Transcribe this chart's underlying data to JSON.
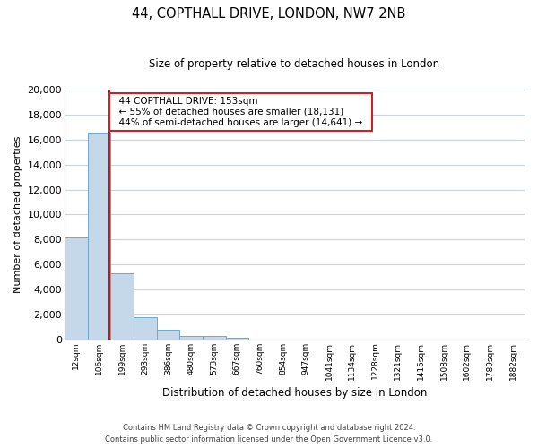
{
  "title": "44, COPTHALL DRIVE, LONDON, NW7 2NB",
  "subtitle": "Size of property relative to detached houses in London",
  "bar_values": [
    8150,
    16550,
    5300,
    1800,
    750,
    300,
    280,
    150,
    0,
    0,
    0,
    0,
    0,
    0,
    0,
    0,
    0,
    0,
    0,
    0
  ],
  "categories": [
    "12sqm",
    "106sqm",
    "199sqm",
    "293sqm",
    "386sqm",
    "480sqm",
    "573sqm",
    "667sqm",
    "760sqm",
    "854sqm",
    "947sqm",
    "1041sqm",
    "1134sqm",
    "1228sqm",
    "1321sqm",
    "1415sqm",
    "1508sqm",
    "1602sqm",
    "1789sqm",
    "1882sqm"
  ],
  "bar_color": "#c5d8ea",
  "bar_edge_color": "#6fa8c8",
  "ylabel": "Number of detached properties",
  "xlabel": "Distribution of detached houses by size in London",
  "ylim": [
    0,
    20000
  ],
  "yticks": [
    0,
    2000,
    4000,
    6000,
    8000,
    10000,
    12000,
    14000,
    16000,
    18000,
    20000
  ],
  "property_line_x": 1.47,
  "property_line_color": "#aa2222",
  "annotation_title": "44 COPTHALL DRIVE: 153sqm",
  "annotation_line1": "← 55% of detached houses are smaller (18,131)",
  "annotation_line2": "44% of semi-detached houses are larger (14,641) →",
  "annotation_box_color": "#ffffff",
  "annotation_box_edge": "#cc2222",
  "footer_line1": "Contains HM Land Registry data © Crown copyright and database right 2024.",
  "footer_line2": "Contains public sector information licensed under the Open Government Licence v3.0.",
  "background_color": "#ffffff",
  "grid_color": "#c8d4e0"
}
